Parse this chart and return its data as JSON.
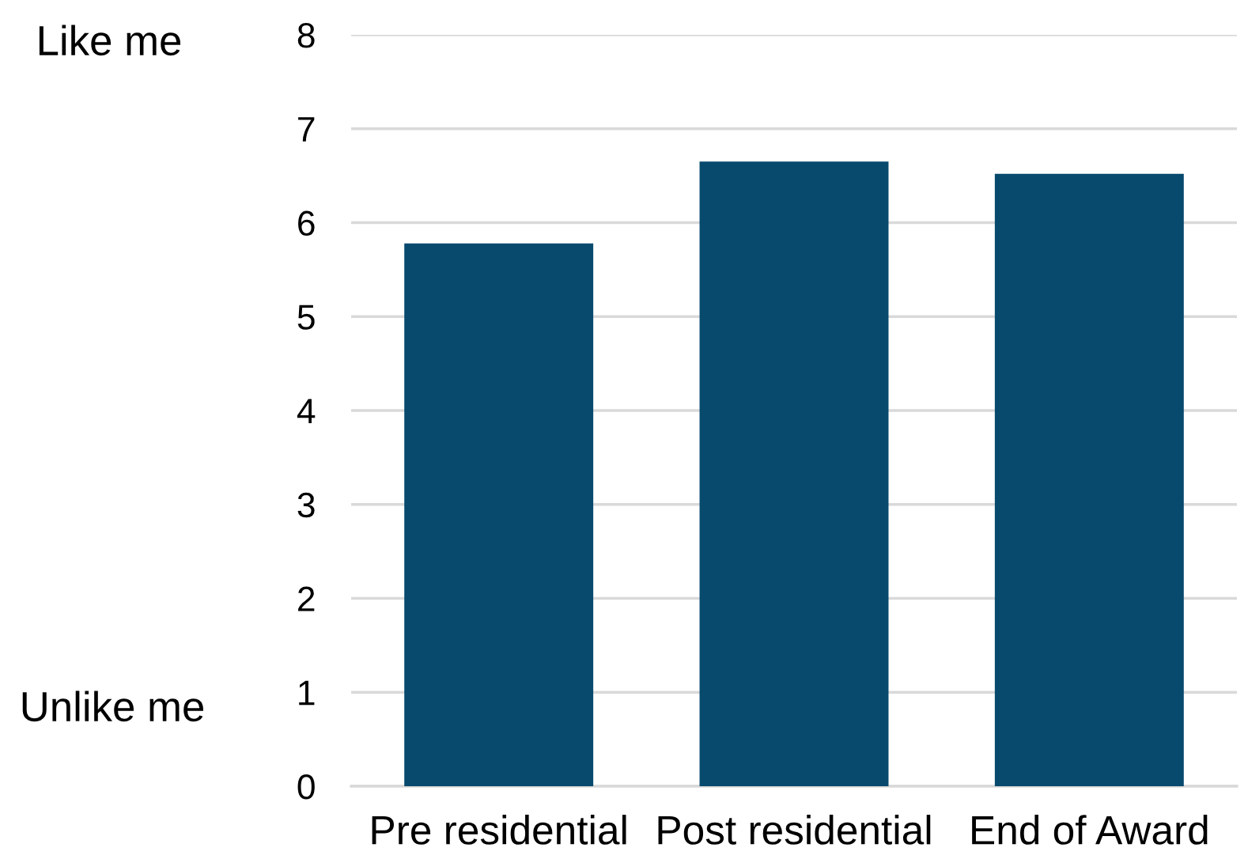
{
  "chart_data": {
    "type": "bar",
    "categories": [
      "Pre residential",
      "Post residential",
      "End of Award"
    ],
    "values": [
      5.78,
      6.65,
      6.52
    ],
    "color": "#074a6e",
    "ylim": [
      0,
      8
    ],
    "yticks": [
      0,
      1,
      2,
      3,
      4,
      5,
      6,
      7,
      8
    ],
    "grid": "y",
    "legend": false,
    "annotations": [
      "Like me",
      "Unlike me"
    ]
  }
}
